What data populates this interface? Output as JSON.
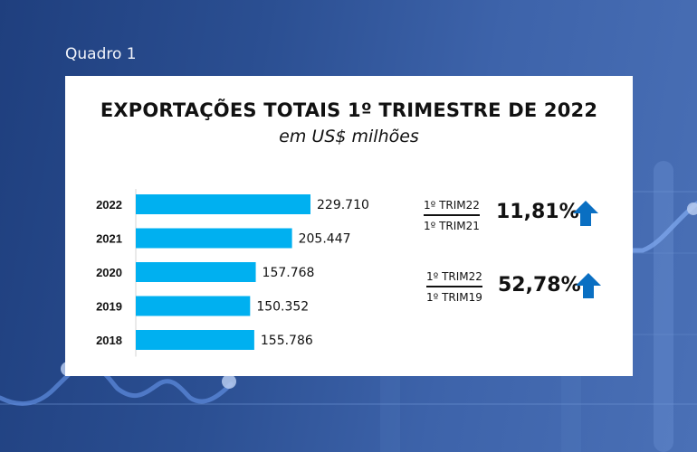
{
  "header": {
    "label": "Quadro 1"
  },
  "card": {
    "title": "EXPORTAÇÕES TOTAIS 1º TRIMESTRE DE 2022",
    "subtitle": "em US$ milhões"
  },
  "chart_data": {
    "type": "bar",
    "orientation": "horizontal",
    "title": "EXPORTAÇÕES TOTAIS 1º TRIMESTRE DE 2022",
    "subtitle": "em US$ milhões",
    "categories": [
      "2022",
      "2021",
      "2020",
      "2019",
      "2018"
    ],
    "values": [
      229.71,
      205.447,
      157.768,
      150.352,
      155.786
    ],
    "value_labels": [
      "229.710",
      "205.447",
      "157.768",
      "150.352",
      "155.786"
    ],
    "xlabel": "",
    "ylabel": "",
    "xlim": [
      0,
      229.71
    ],
    "grid": false,
    "bar_color": "#00b0f0"
  },
  "comparisons": [
    {
      "numerator": "1º TRIM22",
      "denominator": "1º TRIM21",
      "value": "11,81%",
      "direction": "up",
      "icon": "arrow-up-icon"
    },
    {
      "numerator": "1º TRIM22",
      "denominator": "1º TRIM19",
      "value": "52,78%",
      "direction": "up",
      "icon": "arrow-up-icon"
    }
  ],
  "colors": {
    "bar": "#00b0f0",
    "arrow": "#0a6fc2",
    "background": "#2b4f92"
  }
}
